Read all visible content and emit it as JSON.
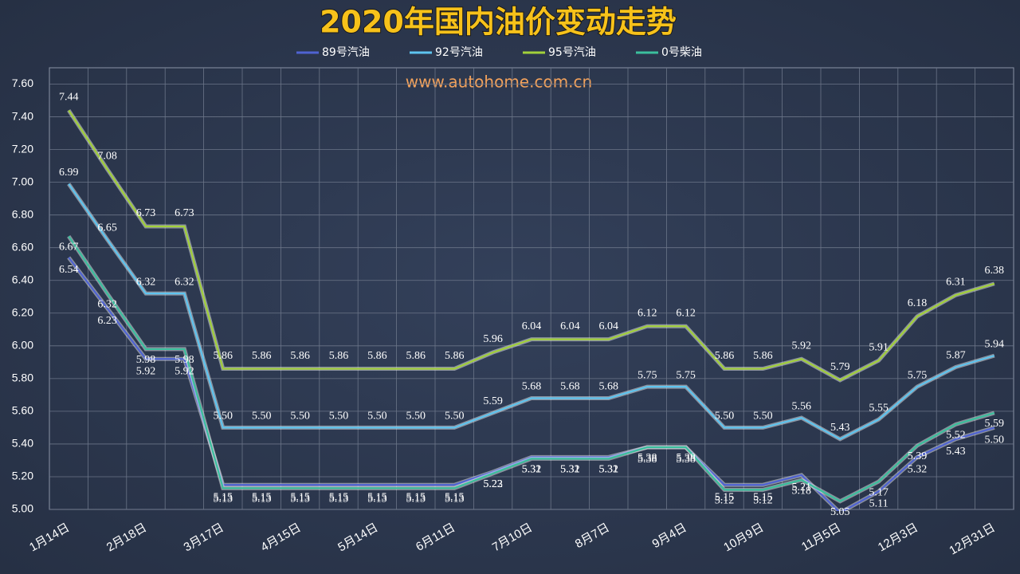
{
  "chart_data": {
    "type": "line",
    "title": "2020年国内油价变动走势",
    "annotations": [
      "www.autohome.com.cn"
    ],
    "categories": [
      "1月14日",
      null,
      "2月18日",
      null,
      "3月17日",
      null,
      "4月15日",
      null,
      "5月14日",
      null,
      "6月11日",
      null,
      "7月10日",
      null,
      "8月7日",
      null,
      "9月4日",
      null,
      "10月9日",
      null,
      "11月5日",
      null,
      "12月3日",
      null,
      "12月31日"
    ],
    "ylim": [
      5.0,
      7.7
    ],
    "yticks": [
      {
        "value": 5.0,
        "label": "5.00"
      },
      {
        "value": 5.2,
        "label": "5.20"
      },
      {
        "value": 5.4,
        "label": "5.40"
      },
      {
        "value": 5.6,
        "label": "5.60"
      },
      {
        "value": 5.8,
        "label": "5.80"
      },
      {
        "value": 6.0,
        "label": "6.00"
      },
      {
        "value": 6.2,
        "label": "6.20"
      },
      {
        "value": 6.4,
        "label": "6.40"
      },
      {
        "value": 6.6,
        "label": "6.60"
      },
      {
        "value": 6.8,
        "label": "6.80"
      },
      {
        "value": 7.0,
        "label": "7.00"
      },
      {
        "value": 7.2,
        "label": "7.20"
      },
      {
        "value": 7.4,
        "label": "7.40"
      },
      {
        "value": 7.6,
        "label": "7.60"
      }
    ],
    "grid": true,
    "series": [
      {
        "name": "89号汽油",
        "color": "#4f63d2",
        "values": [
          6.54,
          6.23,
          5.92,
          5.92,
          5.15,
          5.15,
          5.15,
          5.15,
          5.15,
          5.15,
          5.15,
          5.23,
          5.32,
          5.32,
          5.32,
          5.38,
          5.38,
          5.15,
          5.15,
          5.21,
          4.98,
          5.11,
          5.32,
          5.43,
          5.5
        ],
        "value_labels": [
          "6.54",
          "6.23",
          "5.92",
          "5.92",
          "5.15",
          "5.15",
          "5.15",
          "5.15",
          "5.15",
          "5.15",
          "5.15",
          "5.23",
          "5.32",
          "5.32",
          "5.32",
          "5.38",
          "5.38",
          "5.15",
          "5.15",
          "5.21",
          null,
          "5.11",
          "5.32",
          "5.43",
          "5.50"
        ]
      },
      {
        "name": "92号汽油",
        "color": "#5ec4ef",
        "values": [
          6.99,
          6.65,
          6.32,
          6.32,
          5.5,
          5.5,
          5.5,
          5.5,
          5.5,
          5.5,
          5.5,
          5.59,
          5.68,
          5.68,
          5.68,
          5.75,
          5.75,
          5.5,
          5.5,
          5.56,
          5.43,
          5.55,
          5.75,
          5.87,
          5.94
        ],
        "value_labels": [
          "6.99",
          "6.65",
          "6.32",
          "6.32",
          "5.50",
          "5.50",
          "5.50",
          "5.50",
          "5.50",
          "5.50",
          "5.50",
          "5.59",
          "5.68",
          "5.68",
          "5.68",
          "5.75",
          "5.75",
          "5.50",
          "5.50",
          "5.56",
          "5.43",
          "5.55",
          "5.75",
          "5.87",
          "5.94"
        ]
      },
      {
        "name": "95号汽油",
        "color": "#a2d13a",
        "values": [
          7.44,
          7.08,
          6.73,
          6.73,
          5.86,
          5.86,
          5.86,
          5.86,
          5.86,
          5.86,
          5.86,
          5.96,
          6.04,
          6.04,
          6.04,
          6.12,
          6.12,
          5.86,
          5.86,
          5.92,
          5.79,
          5.91,
          6.18,
          6.31,
          6.38
        ],
        "value_labels": [
          "7.44",
          "7.08",
          "6.73",
          "6.73",
          "5.86",
          "5.86",
          "5.86",
          "5.86",
          "5.86",
          "5.86",
          "5.86",
          "5.96",
          "6.04",
          "6.04",
          "6.04",
          "6.12",
          "6.12",
          "5.86",
          "5.86",
          "5.92",
          "5.79",
          "5.91",
          "6.18",
          "6.31",
          "6.38"
        ]
      },
      {
        "name": "0号柴油",
        "color": "#3bbf9d",
        "values": [
          6.67,
          6.32,
          5.98,
          5.98,
          5.13,
          5.13,
          5.13,
          5.13,
          5.13,
          5.13,
          5.13,
          5.22,
          5.31,
          5.31,
          5.31,
          5.38,
          5.38,
          5.12,
          5.12,
          5.18,
          5.05,
          5.17,
          5.39,
          5.52,
          5.59
        ],
        "value_labels": [
          "6.67",
          "6.32",
          "5.98",
          "5.98",
          "5.13",
          "5.13",
          "5.13",
          "5.13",
          "5.13",
          "5.13",
          "5.13",
          "5.22",
          "5.31",
          "5.31",
          "5.31",
          "5.38",
          "5.38",
          "5.12",
          "5.12",
          "5.18",
          "5.05",
          "5.17",
          "5.39",
          "5.52",
          "5.59"
        ]
      }
    ]
  }
}
